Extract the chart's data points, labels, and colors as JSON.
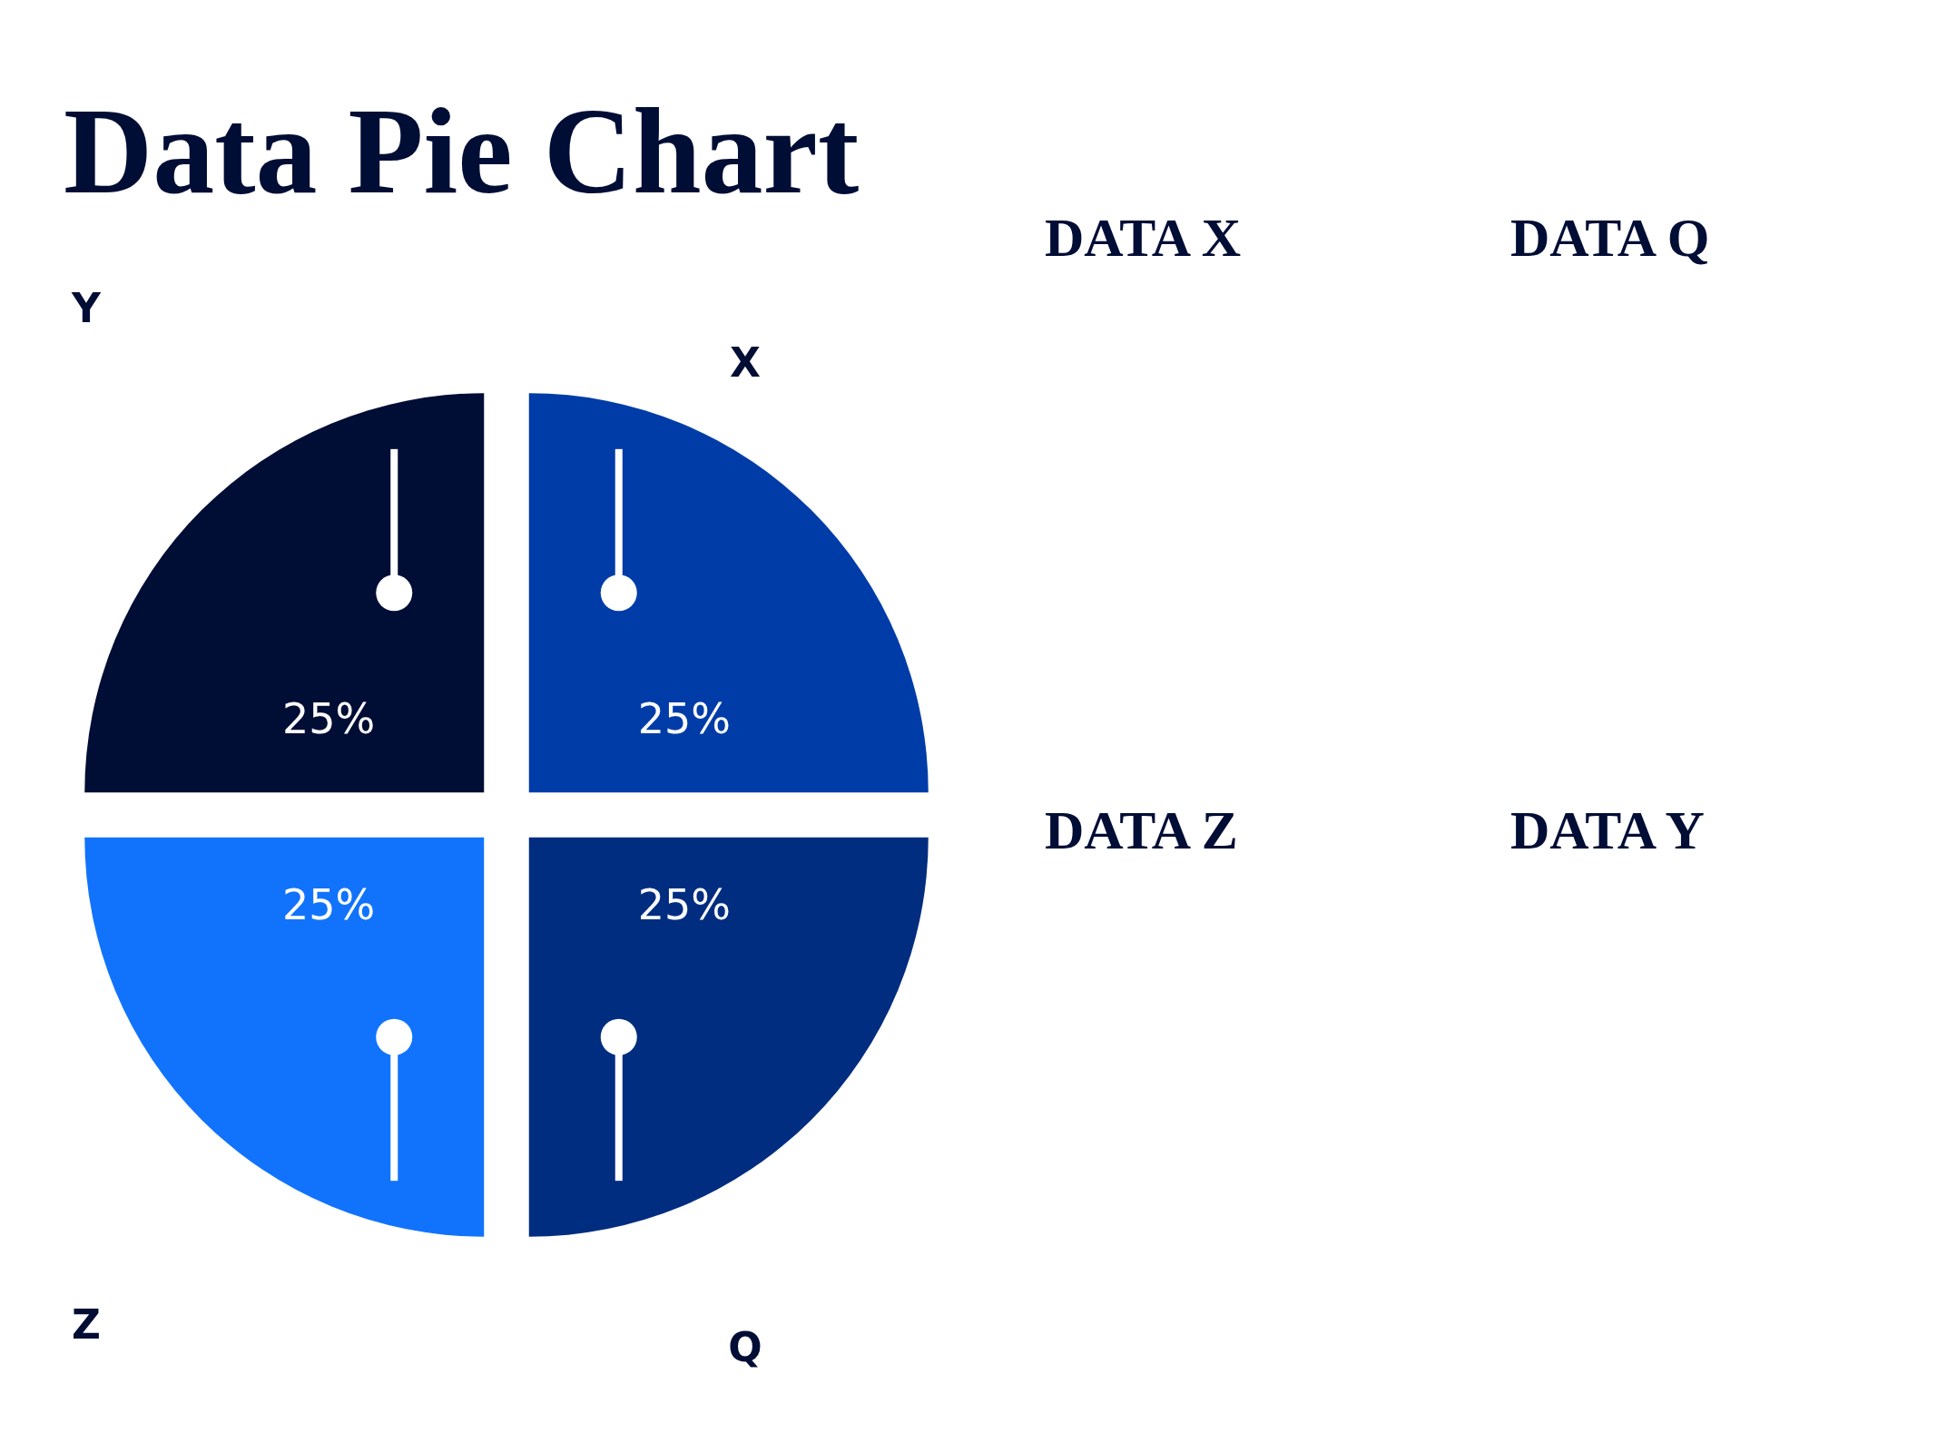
{
  "chart_data": {
    "type": "pie",
    "title": "Data Pie Chart",
    "categories": [
      "X",
      "Q",
      "Z",
      "Y"
    ],
    "values": [
      25,
      25,
      25,
      25
    ],
    "value_labels": [
      "25%",
      "25%",
      "25%",
      "25%"
    ],
    "colors": [
      "#003ca8",
      "#012d80",
      "#1173fc",
      "#000d35"
    ],
    "annotations": [
      "DATA X",
      "DATA Q",
      "DATA Z",
      "DATA Y"
    ]
  }
}
